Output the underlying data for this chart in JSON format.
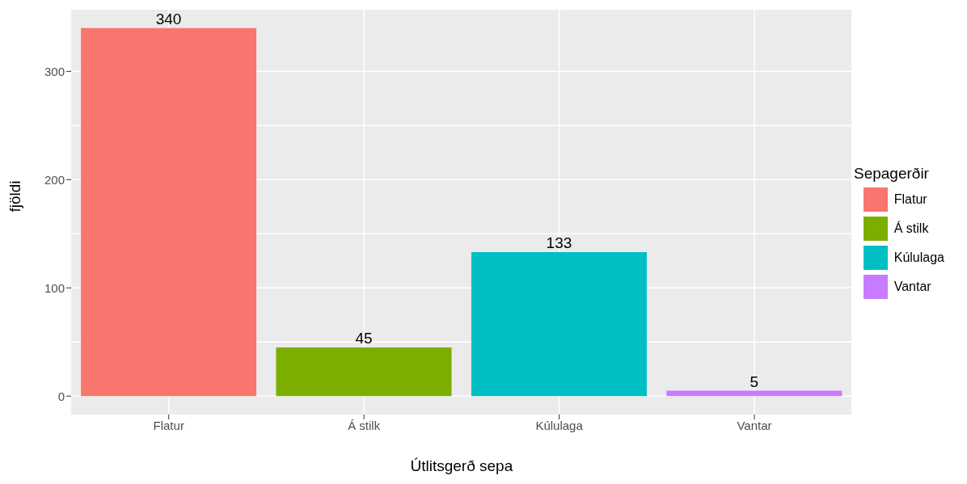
{
  "chart_data": {
    "type": "bar",
    "xlabel": "Útlitsgerð sepa",
    "ylabel": "fjöldi",
    "legend_title": "Sepagerðir",
    "legend": "right",
    "categories": [
      "Flatur",
      "Á stilk",
      "Kúlulaga",
      "Vantar"
    ],
    "series": [
      {
        "name": "Flatur",
        "color": "#f8766d",
        "values": [
          340,
          null,
          null,
          null
        ]
      },
      {
        "name": "Á stilk",
        "color": "#7cae00",
        "values": [
          null,
          45,
          null,
          null
        ]
      },
      {
        "name": "Kúlulaga",
        "color": "#00bfc4",
        "values": [
          null,
          null,
          133,
          null
        ]
      },
      {
        "name": "Vantar",
        "color": "#c77cff",
        "values": [
          null,
          null,
          null,
          5
        ]
      }
    ],
    "ylim": [
      -17,
      357
    ],
    "yticks": [
      0,
      100,
      200,
      300
    ],
    "grid": true,
    "data_labels": true
  }
}
